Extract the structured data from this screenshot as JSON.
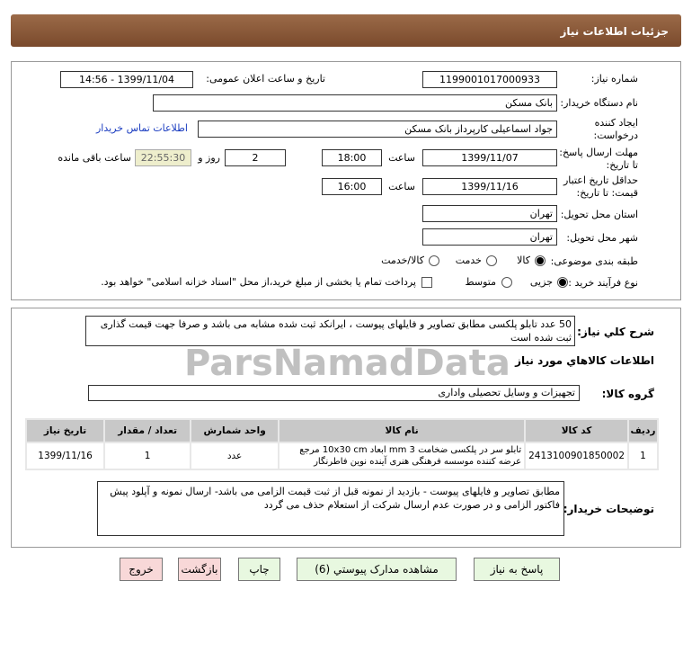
{
  "header": {
    "title": "جزئیات اطلاعات نیاز"
  },
  "form": {
    "need_number_label": "شماره نیاز:",
    "need_number": "1199001017000933",
    "announce_label": "تاریخ و ساعت اعلان عمومی:",
    "announce_value": "1399/11/04 - 14:56",
    "buyer_org_label": "نام دستگاه خریدار:",
    "buyer_org": "بانک مسکن",
    "creator_label_1": "ایجاد کننده",
    "creator_label_2": "درخواست:",
    "creator": "جواد اسماعیلی کارپرداز بانک مسکن",
    "contact_link": "اطلاعات تماس خریدار",
    "deadline_label_1": "مهلت ارسال پاسخ:",
    "deadline_label_2": "تا تاریخ:",
    "deadline_date": "1399/11/07",
    "time_label": "ساعت",
    "deadline_time": "18:00",
    "days": "2",
    "days_label": "روز و",
    "remaining": "22:55:30",
    "remaining_label": "ساعت باقی مانده",
    "validity_label_1": "حداقل تاریخ اعتبار",
    "validity_label_2": "قیمت: تا تاریخ:",
    "validity_date": "1399/11/16",
    "validity_time": "16:00",
    "province_label": "استان محل تحویل:",
    "province": "تهران",
    "city_label": "شهر محل تحویل:",
    "city": "تهران",
    "category_label": "طبقه بندی موضوعی:",
    "category_options": [
      "کالا",
      "خدمت",
      "کالا/خدمت"
    ],
    "category_selected": "کالا",
    "process_label": "نوع فرآیند خرید :",
    "process_options": [
      "جزیی",
      "متوسط"
    ],
    "process_selected": "جزیی",
    "payment_text": "پرداخت تمام یا بخشی از مبلغ خرید،از محل \"اسناد خزانه اسلامی\" خواهد بود.",
    "payment_checked": false
  },
  "details": {
    "description_label": "شرح کلي نياز:",
    "description": "50 عدد تابلو پلکسی مطابق تصاویر و فایلهای پیوست ، ایرانکد ثبت شده مشابه می باشد و صرفا جهت قیمت گذاری ثبت شده است",
    "goods_info_title": "اطلاعات کالاهاي مورد نياز",
    "group_label": "گروه کالا:",
    "group": "تجهیزات و وسایل تحصیلی واداری",
    "table": {
      "headers": [
        "رديف",
        "کد کالا",
        "نام کالا",
        "واحد شمارش",
        "تعداد / مقدار",
        "تاریخ نیاز"
      ],
      "rows": [
        [
          "1",
          "2413100901850002",
          "تابلو سر در پلکسی ضخامت 3 mm ابعاد 10x30 cm مرجع عرضه کننده موسسه فرهنگی هنری آینده نوین فاطرنگار",
          "عدد",
          "1",
          "1399/11/16"
        ]
      ]
    },
    "notes_label": "توضیحات خریدار:",
    "notes": "مطابق تصاویر و فایلهای پیوست - بازدید از نمونه قبل از ثبت قیمت الزامی می باشد- ارسال نمونه و آپلود پیش فاکتور الزامی و در صورت عدم ارسال شرکت از استعلام حذف می گردد"
  },
  "buttons": {
    "reply": "پاسخ به نیاز",
    "attachments": "مشاهده مدارک پیوستي (6)",
    "print": "چاپ",
    "back": "بازگشت",
    "exit": "خروج"
  },
  "watermark": {
    "text": "ParsNamadData"
  }
}
